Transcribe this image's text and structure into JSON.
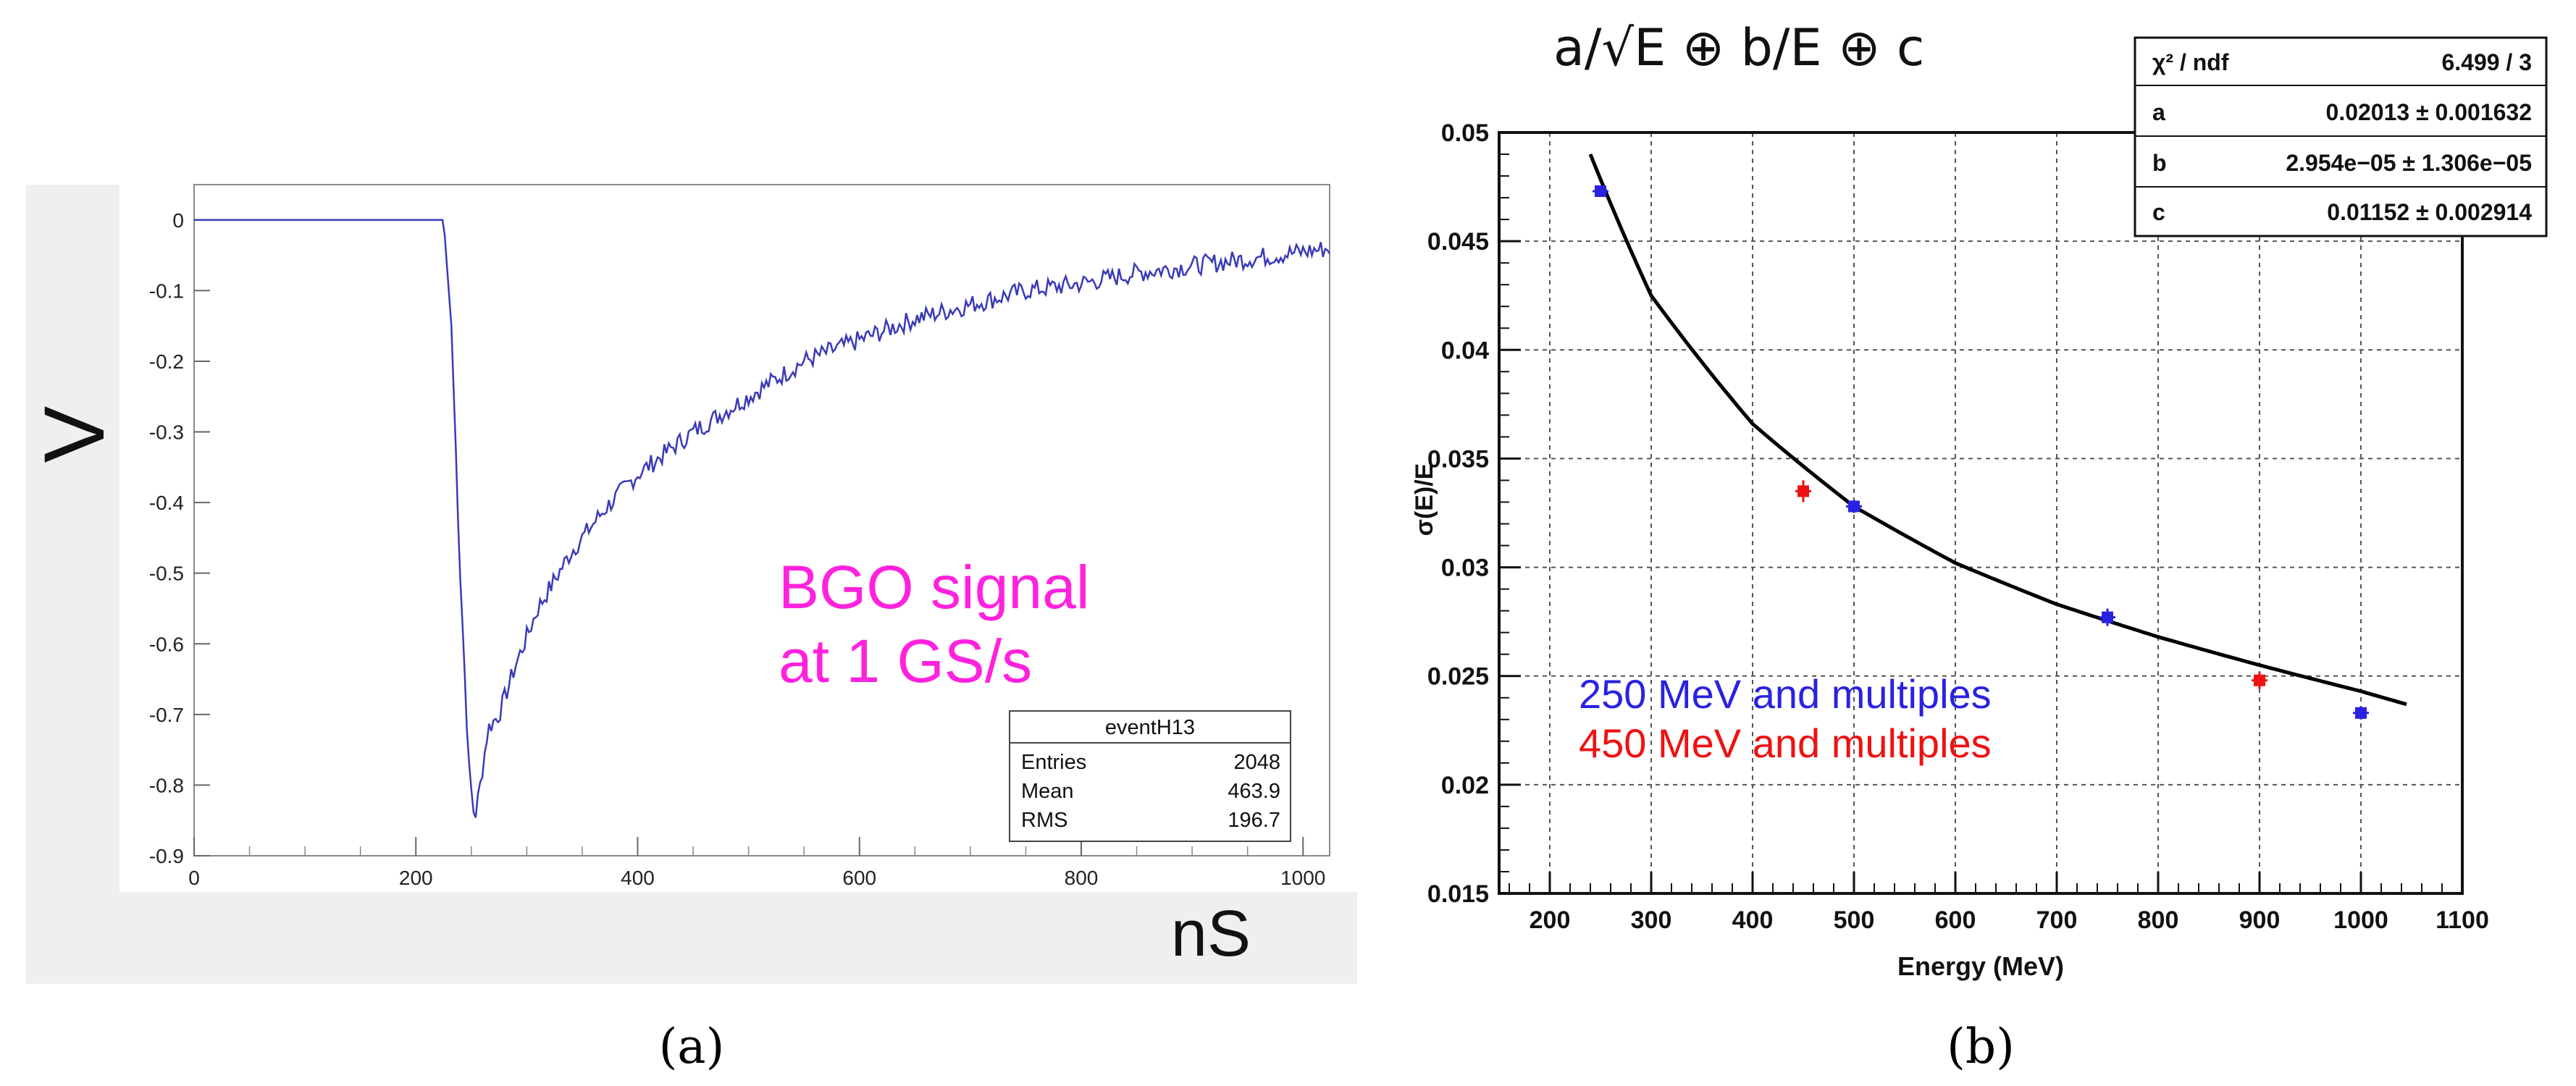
{
  "captions": {
    "a": "(a)",
    "b": "(b)"
  },
  "chart_data": [
    {
      "type": "line",
      "panel": "a",
      "title": "",
      "xlabel": "nS",
      "ylabel": "V",
      "xlim": [
        0,
        1024
      ],
      "ylim": [
        -0.9,
        0.05
      ],
      "xticks": [
        0,
        200,
        400,
        600,
        800,
        1000
      ],
      "yticks": [
        0,
        -0.1,
        -0.2,
        -0.3,
        -0.4,
        -0.5,
        -0.6,
        -0.7,
        -0.8,
        -0.9
      ],
      "xtick_labels": [
        "0",
        "200",
        "400",
        "600",
        "800",
        "1000"
      ],
      "ytick_labels": [
        "0",
        "-0.1",
        "-0.2",
        "-0.3",
        "-0.4",
        "-0.5",
        "-0.6",
        "-0.7",
        "-0.8",
        "-0.9"
      ],
      "grid": false,
      "annotation": [
        "BGO signal",
        "at 1 GS/s"
      ],
      "colors": {
        "line": "#3a3ab8",
        "annotation": "#ff22dd"
      },
      "stats": {
        "title": "eventH13",
        "rows": [
          {
            "label": "Entries",
            "value": "2048"
          },
          {
            "label": "Mean",
            "value": "463.9"
          },
          {
            "label": "RMS",
            "value": "196.7"
          }
        ]
      },
      "series": [
        {
          "x": [
            0,
            100,
            200,
            225,
            232,
            240,
            248,
            253,
            258,
            265,
            275,
            290,
            310,
            340,
            370,
            400,
            450,
            500,
            550,
            600,
            650,
            700,
            750,
            800,
            850,
            900,
            950,
            1000,
            1024
          ],
          "y": [
            0,
            0,
            0,
            0,
            -0.15,
            -0.5,
            -0.78,
            -0.85,
            -0.8,
            -0.72,
            -0.7,
            -0.63,
            -0.55,
            -0.47,
            -0.41,
            -0.36,
            -0.3,
            -0.25,
            -0.2,
            -0.17,
            -0.14,
            -0.12,
            -0.1,
            -0.09,
            -0.075,
            -0.065,
            -0.055,
            -0.045,
            -0.04
          ]
        }
      ]
    },
    {
      "type": "scatter",
      "panel": "b",
      "title": "a/√E ⊕ b/E ⊕ c",
      "xlabel": "Energy (MeV)",
      "ylabel": "σ(E)/E",
      "xlim": [
        150,
        1100
      ],
      "ylim": [
        0.015,
        0.05
      ],
      "xticks": [
        200,
        300,
        400,
        500,
        600,
        700,
        800,
        900,
        1000,
        1100
      ],
      "yticks": [
        0.015,
        0.02,
        0.025,
        0.03,
        0.035,
        0.04,
        0.045,
        0.05
      ],
      "xtick_labels": [
        "200",
        "300",
        "400",
        "500",
        "600",
        "700",
        "800",
        "900",
        "1000",
        "1100"
      ],
      "ytick_labels": [
        "0.015",
        "0.02",
        "0.025",
        "0.03",
        "0.035",
        "0.04",
        "0.045",
        "0.05"
      ],
      "grid": true,
      "legend_position": "bottom-left",
      "colors": {
        "fit": "#000000"
      },
      "fit": {
        "a": 0.02013,
        "b": 2.954e-05,
        "c": 0.01152,
        "x": [
          240,
          300,
          400,
          500,
          600,
          700,
          800,
          900,
          1000,
          1045
        ],
        "y": [
          0.049,
          0.0425,
          0.0366,
          0.0328,
          0.0302,
          0.0283,
          0.0268,
          0.0255,
          0.0243,
          0.0237
        ]
      },
      "stats": {
        "rows": [
          {
            "label": "χ² / ndf",
            "value": "6.499 / 3"
          },
          {
            "label": "a",
            "value": "0.02013 ± 0.001632"
          },
          {
            "label": "b",
            "value": "2.954e−05 ± 1.306e−05"
          },
          {
            "label": "c",
            "value": "0.01152 ± 0.002914"
          }
        ]
      },
      "series": [
        {
          "name": "250 MeV and multiples",
          "color": "#2a22e0",
          "x": [
            250,
            500,
            750,
            1000
          ],
          "y": [
            0.0473,
            0.0328,
            0.0277,
            0.0233
          ],
          "err": [
            0.0002,
            0.0003,
            0.0004,
            0.0003
          ]
        },
        {
          "name": "450 MeV and multiples",
          "color": "#ee1111",
          "x": [
            450,
            900
          ],
          "y": [
            0.0335,
            0.0248
          ],
          "err": [
            0.0005,
            0.0004
          ]
        }
      ]
    }
  ]
}
